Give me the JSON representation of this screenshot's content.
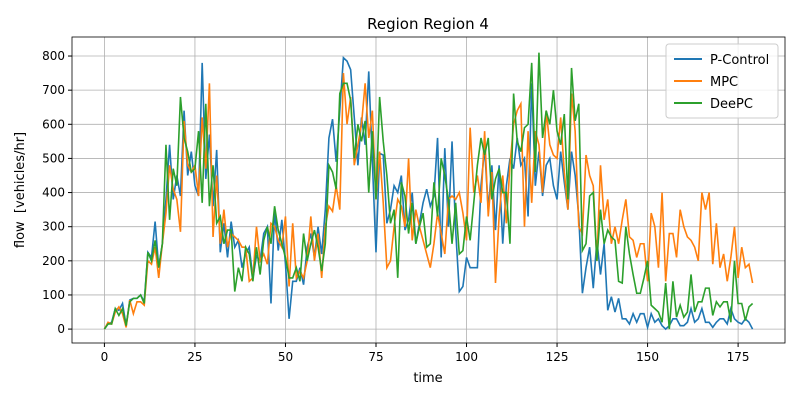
{
  "chart_data": {
    "type": "line",
    "title": "Region Region 4",
    "x_label": "time",
    "y_label": "flow  [vehicles/hr]",
    "x": [
      0,
      1,
      2,
      3,
      4,
      5,
      6,
      7,
      8,
      9,
      10,
      11,
      12,
      13,
      14,
      15,
      16,
      17,
      18,
      19,
      20,
      21,
      22,
      23,
      24,
      25,
      26,
      27,
      28,
      29,
      30,
      31,
      32,
      33,
      34,
      35,
      36,
      37,
      38,
      39,
      40,
      41,
      42,
      43,
      44,
      45,
      46,
      47,
      48,
      49,
      50,
      51,
      52,
      53,
      54,
      55,
      56,
      57,
      58,
      59,
      60,
      61,
      62,
      63,
      64,
      65,
      66,
      67,
      68,
      69,
      70,
      71,
      72,
      73,
      74,
      75,
      76,
      77,
      78,
      79,
      80,
      81,
      82,
      83,
      84,
      85,
      86,
      87,
      88,
      89,
      90,
      91,
      92,
      93,
      94,
      95,
      96,
      97,
      98,
      99,
      100,
      101,
      102,
      103,
      104,
      105,
      106,
      107,
      108,
      109,
      110,
      111,
      112,
      113,
      114,
      115,
      116,
      117,
      118,
      119,
      120,
      121,
      122,
      123,
      124,
      125,
      126,
      127,
      128,
      129,
      130,
      131,
      132,
      133,
      134,
      135,
      136,
      137,
      138,
      139,
      140,
      141,
      142,
      143,
      144,
      145,
      146,
      147,
      148,
      149,
      150,
      151,
      152,
      153,
      154,
      155,
      156,
      157,
      158,
      159,
      160,
      161,
      162,
      163,
      164,
      165,
      166,
      167,
      168,
      169,
      170,
      171,
      172,
      173,
      174,
      175,
      176,
      177,
      178,
      179
    ],
    "series": [
      {
        "name": "P-Control",
        "color": "#1f77b4",
        "values": [
          0,
          15,
          20,
          60,
          55,
          75,
          10,
          85,
          90,
          90,
          100,
          80,
          225,
          210,
          315,
          180,
          250,
          380,
          540,
          380,
          450,
          390,
          640,
          450,
          520,
          420,
          390,
          780,
          440,
          570,
          360,
          525,
          225,
          310,
          210,
          315,
          240,
          260,
          180,
          220,
          240,
          150,
          215,
          200,
          280,
          300,
          75,
          350,
          230,
          320,
          190,
          30,
          140,
          140,
          180,
          130,
          240,
          280,
          210,
          300,
          220,
          350,
          560,
          615,
          490,
          640,
          795,
          785,
          760,
          620,
          480,
          620,
          540,
          755,
          490,
          225,
          515,
          510,
          310,
          350,
          420,
          400,
          450,
          290,
          320,
          400,
          250,
          310,
          370,
          410,
          360,
          390,
          560,
          210,
          530,
          300,
          550,
          290,
          110,
          125,
          210,
          180,
          180,
          180,
          420,
          530,
          350,
          480,
          290,
          480,
          250,
          420,
          500,
          470,
          560,
          480,
          500,
          330,
          720,
          420,
          520,
          390,
          480,
          500,
          420,
          380,
          520,
          430,
          350,
          520,
          450,
          330,
          105,
          180,
          240,
          120,
          260,
          160,
          250,
          55,
          95,
          50,
          90,
          30,
          30,
          15,
          45,
          20,
          45,
          45,
          5,
          45,
          20,
          30,
          10,
          0,
          10,
          30,
          30,
          10,
          10,
          20,
          60,
          20,
          30,
          60,
          20,
          20,
          5,
          20,
          30,
          30,
          15,
          60,
          30,
          20,
          15,
          30,
          20,
          0
        ]
      },
      {
        "name": "MPC",
        "color": "#ff7f0e",
        "values": [
          0,
          20,
          15,
          50,
          65,
          45,
          5,
          85,
          45,
          80,
          80,
          70,
          200,
          190,
          240,
          150,
          250,
          340,
          480,
          410,
          380,
          285,
          610,
          480,
          460,
          480,
          390,
          620,
          470,
          720,
          270,
          450,
          250,
          350,
          240,
          280,
          270,
          260,
          240,
          240,
          140,
          150,
          300,
          200,
          220,
          190,
          310,
          300,
          260,
          240,
          330,
          125,
          310,
          150,
          170,
          150,
          200,
          330,
          200,
          280,
          150,
          300,
          360,
          345,
          420,
          350,
          750,
          600,
          680,
          480,
          540,
          600,
          720,
          560,
          640,
          380,
          520,
          370,
          180,
          200,
          300,
          380,
          360,
          300,
          500,
          260,
          350,
          300,
          260,
          220,
          180,
          250,
          340,
          280,
          220,
          380,
          390,
          380,
          400,
          340,
          260,
          590,
          400,
          450,
          370,
          580,
          330,
          460,
          135,
          330,
          450,
          310,
          480,
          600,
          640,
          660,
          300,
          580,
          370,
          580,
          540,
          400,
          640,
          540,
          510,
          500,
          620,
          460,
          350,
          690,
          580,
          300,
          280,
          510,
          450,
          420,
          200,
          480,
          320,
          380,
          250,
          300,
          250,
          320,
          380,
          270,
          260,
          210,
          250,
          250,
          140,
          340,
          300,
          180,
          400,
          140,
          280,
          280,
          210,
          350,
          300,
          270,
          260,
          240,
          200,
          400,
          350,
          400,
          190,
          310,
          180,
          220,
          140,
          210,
          300,
          150,
          240,
          180,
          190,
          135
        ]
      },
      {
        "name": "DeePC",
        "color": "#2ca02c",
        "values": [
          0,
          15,
          15,
          60,
          40,
          60,
          10,
          80,
          90,
          90,
          100,
          75,
          225,
          200,
          260,
          180,
          250,
          540,
          320,
          470,
          420,
          680,
          560,
          520,
          460,
          470,
          580,
          370,
          660,
          360,
          480,
          310,
          330,
          250,
          290,
          290,
          110,
          180,
          140,
          240,
          220,
          140,
          240,
          160,
          260,
          300,
          250,
          360,
          290,
          250,
          210,
          150,
          150,
          180,
          140,
          280,
          200,
          250,
          290,
          240,
          170,
          250,
          480,
          460,
          410,
          690,
          720,
          720,
          670,
          500,
          600,
          550,
          610,
          400,
          580,
          380,
          680,
          550,
          450,
          310,
          350,
          150,
          430,
          390,
          280,
          370,
          250,
          300,
          340,
          240,
          250,
          430,
          330,
          500,
          450,
          380,
          250,
          370,
          220,
          230,
          330,
          260,
          370,
          480,
          560,
          510,
          560,
          380,
          440,
          470,
          400,
          400,
          250,
          690,
          550,
          520,
          590,
          600,
          780,
          460,
          810,
          560,
          640,
          600,
          700,
          580,
          540,
          630,
          380,
          765,
          610,
          660,
          230,
          250,
          390,
          400,
          200,
          350,
          250,
          290,
          270,
          260,
          140,
          135,
          300,
          220,
          160,
          105,
          105,
          150,
          200,
          70,
          60,
          50,
          20,
          135,
          0,
          140,
          35,
          70,
          35,
          50,
          160,
          50,
          80,
          80,
          120,
          120,
          40,
          80,
          65,
          80,
          80,
          20,
          200,
          75,
          75,
          25,
          65,
          75
        ]
      }
    ],
    "xlim": [
      -8.95,
      187.95
    ],
    "ylim": [
      -40.75,
      855.75
    ],
    "xticks": [
      0,
      25,
      50,
      75,
      100,
      125,
      150,
      175
    ],
    "yticks": [
      0,
      100,
      200,
      300,
      400,
      500,
      600,
      700,
      800
    ],
    "grid": true,
    "legend": "upper right"
  }
}
